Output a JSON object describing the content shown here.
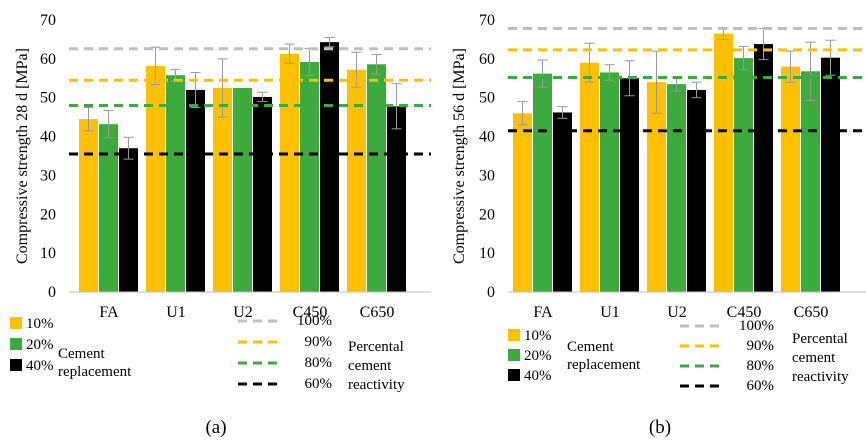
{
  "chart_data": [
    {
      "type": "bar",
      "panel_label": "(a)",
      "ylabel": "Compressive strength 28 d [MPa]",
      "ylim": [
        0,
        70
      ],
      "yticks": [
        0,
        10,
        20,
        30,
        40,
        50,
        60,
        70
      ],
      "grid": false,
      "categories": [
        "FA",
        "U1",
        "U2",
        "C450",
        "C650"
      ],
      "series": [
        {
          "name": "10%",
          "color": "#FFC000",
          "values": [
            44.5,
            58.2,
            52.5,
            61.3,
            57.2
          ],
          "errors": [
            3.0,
            4.8,
            7.5,
            2.5,
            4.5
          ]
        },
        {
          "name": "20%",
          "color": "#3DAA3D",
          "values": [
            43.2,
            55.8,
            52.5,
            59.2,
            58.6
          ],
          "errors": [
            3.5,
            1.5,
            0.0,
            3.5,
            2.5
          ]
        },
        {
          "name": "40%",
          "color": "#000000",
          "values": [
            37.0,
            52.0,
            50.2,
            64.3,
            47.8
          ],
          "errors": [
            2.8,
            4.5,
            1.2,
            1.2,
            5.8
          ]
        }
      ],
      "reference_lines": [
        {
          "label": "100%",
          "value": 62.6,
          "color": "#BFBFBF"
        },
        {
          "label": "90%",
          "value": 54.5,
          "color": "#FFC000"
        },
        {
          "label": "80%",
          "value": 48.0,
          "color": "#3DAA3D"
        },
        {
          "label": "60%",
          "value": 35.5,
          "color": "#000000"
        }
      ],
      "legend_bars_caption": [
        "Cement",
        "replacement"
      ],
      "legend_lines_caption": [
        "Percental",
        "cement",
        "reactivity"
      ]
    },
    {
      "type": "bar",
      "panel_label": "(b)",
      "ylabel": "Compressive strength 56 d [MPa]",
      "ylim": [
        0,
        70
      ],
      "yticks": [
        0,
        10,
        20,
        30,
        40,
        50,
        60,
        70
      ],
      "grid": false,
      "categories": [
        "FA",
        "U1",
        "U2",
        "C450",
        "C650"
      ],
      "series": [
        {
          "name": "10%",
          "color": "#FFC000",
          "values": [
            46.0,
            59.0,
            54.0,
            66.5,
            58.0
          ],
          "errors": [
            3.0,
            5.0,
            8.0,
            1.5,
            4.0
          ]
        },
        {
          "name": "20%",
          "color": "#3DAA3D",
          "values": [
            56.2,
            56.5,
            53.5,
            60.2,
            56.8
          ],
          "errors": [
            3.5,
            2.0,
            1.8,
            3.0,
            7.5
          ]
        },
        {
          "name": "40%",
          "color": "#000000",
          "values": [
            46.2,
            55.0,
            52.0,
            63.8,
            60.3
          ],
          "errors": [
            1.5,
            4.5,
            2.0,
            4.0,
            4.5
          ]
        }
      ],
      "reference_lines": [
        {
          "label": "100%",
          "value": 67.8,
          "color": "#BFBFBF"
        },
        {
          "label": "90%",
          "value": 62.3,
          "color": "#FFC000"
        },
        {
          "label": "80%",
          "value": 55.2,
          "color": "#3DAA3D"
        },
        {
          "label": "60%",
          "value": 41.5,
          "color": "#000000"
        }
      ],
      "legend_bars_caption": [
        "Cement",
        "replacement"
      ],
      "legend_lines_caption": [
        "Percental",
        "cement",
        "reactivity"
      ]
    }
  ]
}
